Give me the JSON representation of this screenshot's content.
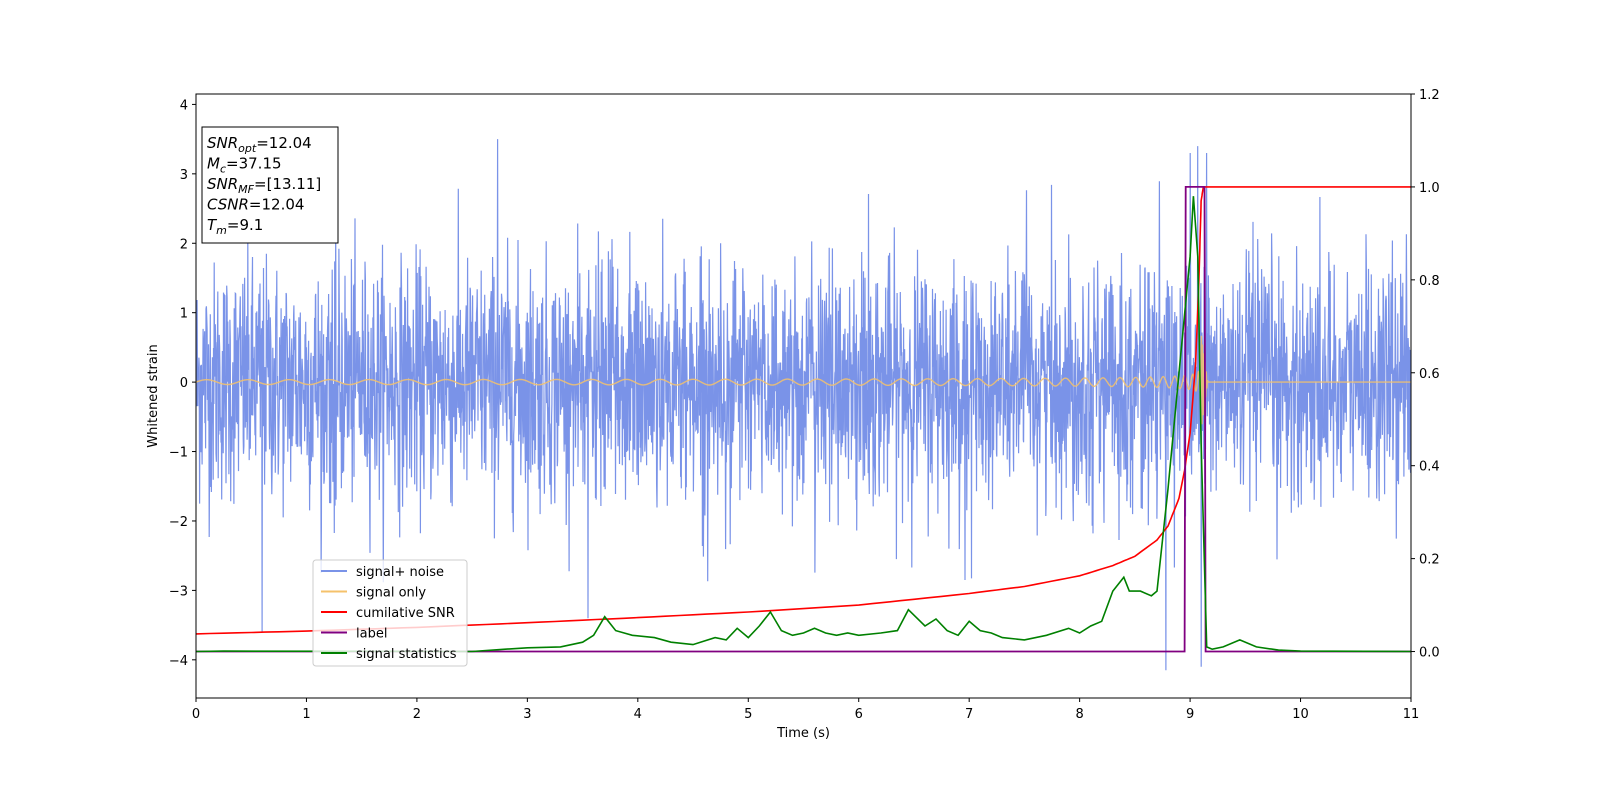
{
  "chart_data": {
    "type": "line",
    "xlabel": "Time (s)",
    "ylabel": "Whitened strain",
    "xlim": [
      0,
      11
    ],
    "ylim": [
      -4.55,
      4.15
    ],
    "ylim_right": [
      -0.1,
      1.2
    ],
    "x_ticks": [
      "0",
      "1",
      "2",
      "3",
      "4",
      "5",
      "6",
      "7",
      "8",
      "9",
      "10",
      "11"
    ],
    "y_ticks": [
      "−4",
      "−3",
      "−2",
      "−1",
      "0",
      "1",
      "2",
      "3",
      "4"
    ],
    "y_ticks_right": [
      "0.0",
      "0.2",
      "0.4",
      "0.6",
      "0.8",
      "1.0",
      "1.2"
    ],
    "grid": false,
    "legend_position": "lower-left",
    "info_box": {
      "position": "upper-left",
      "lines": [
        {
          "sym": "SNR",
          "sub": "opt",
          "value": "=12.04"
        },
        {
          "sym": "M",
          "sub": "c",
          "value": "=37.15"
        },
        {
          "sym": "SNR",
          "sub": "MF",
          "value": "=[13.11]"
        },
        {
          "sym": "CSNR",
          "sub": "",
          "value": "=12.04"
        },
        {
          "sym": "T",
          "sub": "m",
          "value": "=9.1"
        }
      ]
    },
    "series": [
      {
        "name": "signal+ noise",
        "color": "#7a93e8",
        "axis": "left",
        "description_type": "noise",
        "std": 0.85,
        "spikes": [
          [
            2.73,
            3.5
          ],
          [
            0.6,
            -3.6
          ],
          [
            3.55,
            -3.4
          ],
          [
            8.78,
            -4.15
          ],
          [
            9.1,
            -4.1
          ],
          [
            9.07,
            3.4
          ],
          [
            9.0,
            3.3
          ],
          [
            9.15,
            3.3
          ]
        ]
      },
      {
        "name": "signal only",
        "color": "#f5c26b",
        "axis": "left",
        "description_type": "chirp",
        "merger_time": 9.1
      },
      {
        "name": "cumilative SNR",
        "color": "#ff0000",
        "axis": "right",
        "x": [
          0,
          1,
          2,
          3,
          4,
          5,
          6,
          7,
          7.5,
          8,
          8.3,
          8.5,
          8.7,
          8.8,
          8.9,
          8.95,
          9.0,
          9.05,
          9.08,
          9.1,
          9.12,
          11
        ],
        "values": [
          0.038,
          0.044,
          0.052,
          0.062,
          0.073,
          0.085,
          0.1,
          0.125,
          0.14,
          0.163,
          0.185,
          0.205,
          0.24,
          0.27,
          0.33,
          0.39,
          0.47,
          0.62,
          0.8,
          0.97,
          1.0,
          1.0
        ]
      },
      {
        "name": "label",
        "color": "#800080",
        "axis": "right",
        "x": [
          0,
          8.95,
          8.96,
          9.13,
          9.14,
          11
        ],
        "values": [
          0,
          0,
          1.0,
          1.0,
          0,
          0
        ]
      },
      {
        "name": "signal statistics",
        "color": "#008000",
        "axis": "right",
        "x": [
          0,
          0.25,
          2.5,
          2.8,
          3.0,
          3.3,
          3.5,
          3.6,
          3.7,
          3.8,
          3.95,
          4.15,
          4.3,
          4.5,
          4.7,
          4.8,
          4.9,
          5.0,
          5.1,
          5.2,
          5.3,
          5.4,
          5.5,
          5.6,
          5.7,
          5.8,
          5.9,
          6.0,
          6.2,
          6.35,
          6.45,
          6.6,
          6.7,
          6.8,
          6.9,
          7.0,
          7.1,
          7.2,
          7.3,
          7.5,
          7.7,
          7.9,
          8.0,
          8.1,
          8.2,
          8.3,
          8.4,
          8.45,
          8.55,
          8.65,
          8.7,
          8.8,
          8.9,
          9.0,
          9.03,
          9.07,
          9.1,
          9.15,
          9.2,
          9.3,
          9.45,
          9.6,
          9.8,
          10.0,
          11
        ],
        "values": [
          0.0,
          0.001,
          0.0,
          0.005,
          0.008,
          0.01,
          0.02,
          0.035,
          0.075,
          0.045,
          0.035,
          0.03,
          0.02,
          0.015,
          0.03,
          0.025,
          0.05,
          0.03,
          0.055,
          0.085,
          0.045,
          0.035,
          0.04,
          0.05,
          0.04,
          0.035,
          0.04,
          0.035,
          0.04,
          0.045,
          0.09,
          0.055,
          0.07,
          0.045,
          0.035,
          0.065,
          0.045,
          0.04,
          0.03,
          0.025,
          0.035,
          0.05,
          0.04,
          0.055,
          0.065,
          0.13,
          0.16,
          0.13,
          0.13,
          0.12,
          0.13,
          0.35,
          0.6,
          0.85,
          0.98,
          0.85,
          0.45,
          0.01,
          0.005,
          0.01,
          0.025,
          0.01,
          0.003,
          0.001,
          0.0
        ]
      }
    ]
  }
}
